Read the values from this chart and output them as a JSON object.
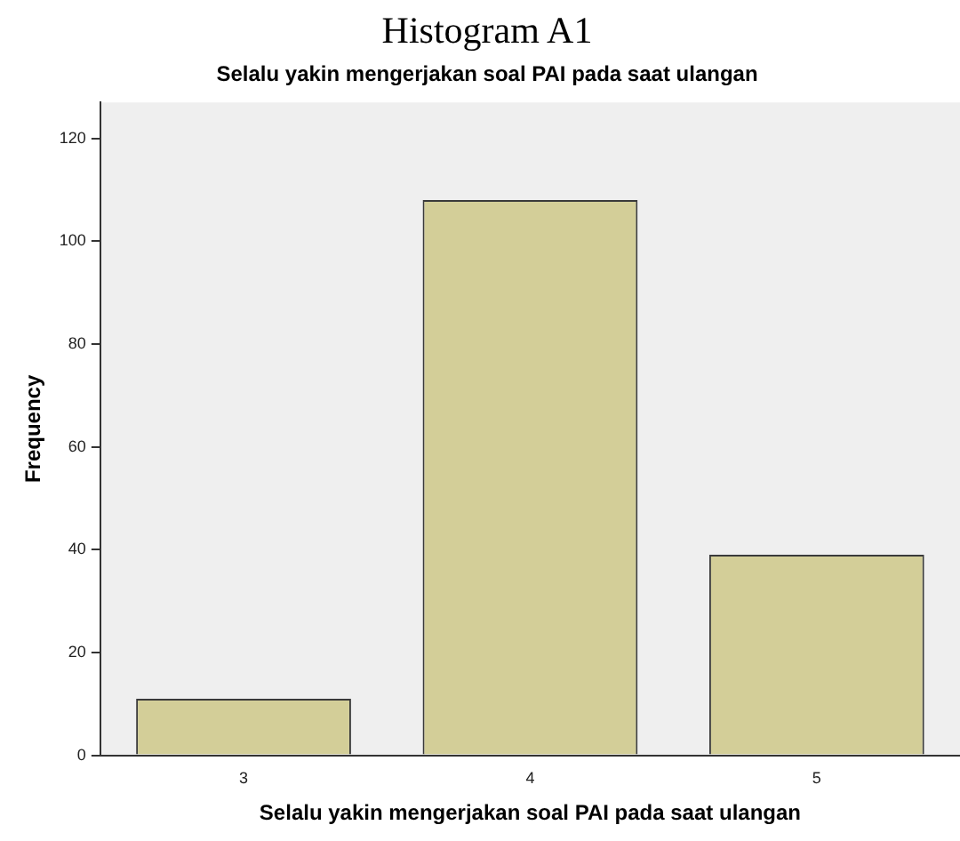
{
  "chart_data": {
    "type": "bar",
    "title": "Histogram A1",
    "subtitle": "Selalu yakin mengerjakan soal PAI pada saat ulangan",
    "xlabel": "Selalu yakin mengerjakan soal PAI pada saat ulangan",
    "ylabel": "Frequency",
    "categories": [
      "3",
      "4",
      "5"
    ],
    "values": [
      11,
      108,
      39
    ],
    "color": "#d3ce98",
    "ylim": [
      0,
      127
    ],
    "yticks": [
      0,
      20,
      40,
      60,
      80,
      100,
      120
    ],
    "grid": false,
    "legend": false
  }
}
